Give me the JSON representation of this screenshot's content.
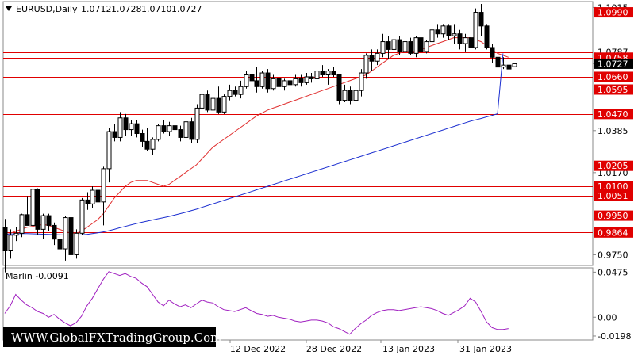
{
  "chart_data": {
    "type": "candlestick",
    "header": {
      "symbol": "EURUSD,Daily",
      "open": "1.0712",
      "high": "1.0728",
      "low": "1.0710",
      "close": "1.0727"
    },
    "price_axis": {
      "ylim": [
        0.9695,
        1.1045
      ],
      "ticks": [
        "1.1015",
        "1.0787",
        "1.0727",
        "1.0385",
        "1.0170",
        "0.9750"
      ]
    },
    "time_axis": {
      "labels": [
        "12 Dec 2022",
        "28 Dec 2022",
        "13 Jan 2023",
        "31 Jan 2023"
      ]
    },
    "levels": [
      {
        "value": 1.099,
        "label": "1.0990"
      },
      {
        "value": 1.0787,
        "label": ""
      },
      {
        "value": 1.0758,
        "label": "1.0758"
      },
      {
        "value": 1.066,
        "label": "1.0660"
      },
      {
        "value": 1.0595,
        "label": "1.0595"
      },
      {
        "value": 1.047,
        "label": "1.0470"
      },
      {
        "value": 1.0205,
        "label": "1.0205"
      },
      {
        "value": 1.01,
        "label": "1.0100"
      },
      {
        "value": 1.0051,
        "label": "1.0051"
      },
      {
        "value": 0.995,
        "label": "0.9950"
      },
      {
        "value": 0.9864,
        "label": "0.9864"
      }
    ],
    "candles": [
      [
        0.989,
        0.9933,
        0.966,
        0.977
      ],
      [
        0.977,
        0.988,
        0.973,
        0.985
      ],
      [
        0.985,
        0.989,
        0.982,
        0.986
      ],
      [
        0.986,
        0.996,
        0.984,
        0.9955
      ],
      [
        0.9955,
        1.005,
        0.99,
        0.99
      ],
      [
        0.99,
        1.009,
        0.988,
        1.0085
      ],
      [
        1.0085,
        1.009,
        0.985,
        0.988
      ],
      [
        0.988,
        0.996,
        0.983,
        0.995
      ],
      [
        0.995,
        0.996,
        0.987,
        0.99
      ],
      [
        0.99,
        0.9915,
        0.98,
        0.983
      ],
      [
        0.983,
        0.987,
        0.975,
        0.978
      ],
      [
        0.978,
        0.995,
        0.972,
        0.994
      ],
      [
        0.994,
        0.995,
        0.973,
        0.975
      ],
      [
        0.975,
        0.988,
        0.973,
        0.986
      ],
      [
        0.986,
        1.004,
        0.985,
        1.003
      ],
      [
        1.003,
        1.007,
        0.998,
        1.001
      ],
      [
        1.001,
        1.01,
        0.999,
        1.008
      ],
      [
        1.008,
        1.01,
        1.0,
        1.002
      ],
      [
        1.002,
        1.02,
        0.99,
        1.019
      ],
      [
        1.019,
        1.04,
        1.012,
        1.038
      ],
      [
        1.038,
        1.042,
        1.033,
        1.035
      ],
      [
        1.035,
        1.048,
        1.033,
        1.045
      ],
      [
        1.045,
        1.047,
        1.036,
        1.039
      ],
      [
        1.039,
        1.044,
        1.036,
        1.042
      ],
      [
        1.042,
        1.044,
        1.035,
        1.037
      ],
      [
        1.037,
        1.039,
        1.03,
        1.033
      ],
      [
        1.033,
        1.04,
        1.028,
        1.029
      ],
      [
        1.029,
        1.035,
        1.026,
        1.034
      ],
      [
        1.034,
        1.042,
        1.033,
        1.041
      ],
      [
        1.041,
        1.044,
        1.037,
        1.038
      ],
      [
        1.038,
        1.043,
        1.036,
        1.041
      ],
      [
        1.041,
        1.051,
        1.035,
        1.039
      ],
      [
        1.039,
        1.041,
        1.033,
        1.035
      ],
      [
        1.035,
        1.044,
        1.033,
        1.043
      ],
      [
        1.043,
        1.045,
        1.032,
        1.034
      ],
      [
        1.034,
        1.052,
        1.032,
        1.05
      ],
      [
        1.05,
        1.058,
        1.049,
        1.057
      ],
      [
        1.057,
        1.059,
        1.048,
        1.049
      ],
      [
        1.049,
        1.058,
        1.047,
        1.055
      ],
      [
        1.055,
        1.061,
        1.047,
        1.048
      ],
      [
        1.048,
        1.057,
        1.047,
        1.056
      ],
      [
        1.056,
        1.062,
        1.054,
        1.059
      ],
      [
        1.059,
        1.061,
        1.056,
        1.057
      ],
      [
        1.057,
        1.064,
        1.055,
        1.061
      ],
      [
        1.061,
        1.069,
        1.06,
        1.067
      ],
      [
        1.067,
        1.071,
        1.062,
        1.064
      ],
      [
        1.064,
        1.071,
        1.058,
        1.061
      ],
      [
        1.061,
        1.069,
        1.06,
        1.068
      ],
      [
        1.068,
        1.07,
        1.058,
        1.06
      ],
      [
        1.06,
        1.067,
        1.059,
        1.065
      ],
      [
        1.065,
        1.066,
        1.058,
        1.061
      ],
      [
        1.061,
        1.065,
        1.059,
        1.064
      ],
      [
        1.064,
        1.065,
        1.06,
        1.062
      ],
      [
        1.062,
        1.067,
        1.061,
        1.065
      ],
      [
        1.065,
        1.067,
        1.061,
        1.063
      ],
      [
        1.063,
        1.068,
        1.062,
        1.066
      ],
      [
        1.066,
        1.068,
        1.063,
        1.065
      ],
      [
        1.065,
        1.07,
        1.064,
        1.069
      ],
      [
        1.069,
        1.072,
        1.066,
        1.067
      ],
      [
        1.067,
        1.07,
        1.062,
        1.069
      ],
      [
        1.069,
        1.071,
        1.066,
        1.067
      ],
      [
        1.067,
        1.067,
        1.052,
        1.054
      ],
      [
        1.054,
        1.062,
        1.053,
        1.059
      ],
      [
        1.059,
        1.061,
        1.052,
        1.054
      ],
      [
        1.054,
        1.06,
        1.048,
        1.059
      ],
      [
        1.059,
        1.07,
        1.056,
        1.068
      ],
      [
        1.068,
        1.078,
        1.065,
        1.077
      ],
      [
        1.077,
        1.08,
        1.069,
        1.074
      ],
      [
        1.074,
        1.08,
        1.072,
        1.078
      ],
      [
        1.078,
        1.088,
        1.076,
        1.084
      ],
      [
        1.084,
        1.087,
        1.075,
        1.08
      ],
      [
        1.08,
        1.087,
        1.078,
        1.085
      ],
      [
        1.085,
        1.087,
        1.077,
        1.079
      ],
      [
        1.079,
        1.085,
        1.077,
        1.084
      ],
      [
        1.084,
        1.086,
        1.077,
        1.078
      ],
      [
        1.078,
        1.087,
        1.076,
        1.086
      ],
      [
        1.086,
        1.088,
        1.076,
        1.079
      ],
      [
        1.079,
        1.085,
        1.078,
        1.084
      ],
      [
        1.084,
        1.092,
        1.082,
        1.09
      ],
      [
        1.09,
        1.093,
        1.086,
        1.088
      ],
      [
        1.088,
        1.093,
        1.086,
        1.092
      ],
      [
        1.092,
        1.093,
        1.085,
        1.087
      ],
      [
        1.087,
        1.093,
        1.083,
        1.088
      ],
      [
        1.088,
        1.09,
        1.08,
        1.083
      ],
      [
        1.083,
        1.088,
        1.079,
        1.086
      ],
      [
        1.086,
        1.088,
        1.08,
        1.081
      ],
      [
        1.081,
        1.101,
        1.08,
        1.099
      ],
      [
        1.099,
        1.1033,
        1.087,
        1.092
      ],
      [
        1.092,
        1.093,
        1.08,
        1.081
      ],
      [
        1.081,
        1.083,
        1.073,
        1.076
      ],
      [
        1.076,
        1.076,
        1.068,
        1.071
      ],
      [
        1.071,
        1.076,
        1.07,
        1.072
      ],
      [
        1.072,
        1.073,
        1.069,
        1.07
      ],
      [
        1.0712,
        1.0728,
        1.071,
        1.0727
      ]
    ],
    "series": [
      {
        "role": "red-ma",
        "color": "#e03030",
        "values": [
          0.985,
          0.986,
          0.987,
          0.988,
          0.989,
          0.9895,
          0.99,
          0.9905,
          0.99,
          0.989,
          0.988,
          0.987,
          0.986,
          0.986,
          0.987,
          0.989,
          0.991,
          0.993,
          0.996,
          1.0,
          1.004,
          1.007,
          1.01,
          1.012,
          1.013,
          1.013,
          1.013,
          1.012,
          1.011,
          1.01,
          1.011,
          1.013,
          1.015,
          1.017,
          1.019,
          1.021,
          1.024,
          1.027,
          1.03,
          1.032,
          1.034,
          1.036,
          1.038,
          1.04,
          1.042,
          1.044,
          1.046,
          1.0475,
          1.049,
          1.05,
          1.051,
          1.052,
          1.053,
          1.054,
          1.055,
          1.056,
          1.057,
          1.058,
          1.059,
          1.06,
          1.061,
          1.062,
          1.063,
          1.064,
          1.065,
          1.066,
          1.067,
          1.069,
          1.071,
          1.073,
          1.075,
          1.077,
          1.078,
          1.079,
          1.079,
          1.079,
          1.08,
          1.081,
          1.082,
          1.083,
          1.084,
          1.085,
          1.086,
          1.086,
          1.086,
          1.086,
          1.085,
          1.084,
          1.082,
          1.08,
          1.078,
          1.077,
          1.076
        ]
      },
      {
        "role": "blue-ma",
        "color": "#1c2fd0",
        "values": [
          0.9855,
          0.9856,
          0.9857,
          0.9858,
          0.9858,
          0.9857,
          0.9856,
          0.9855,
          0.9854,
          0.9853,
          0.9852,
          0.9851,
          0.9851,
          0.9851,
          0.9852,
          0.9854,
          0.9858,
          0.9862,
          0.9867,
          0.9873,
          0.988,
          0.9888,
          0.9895,
          0.9902,
          0.9909,
          0.9916,
          0.9922,
          0.9928,
          0.9934,
          0.994,
          0.9946,
          0.9953,
          0.996,
          0.9967,
          0.9975,
          0.9983,
          0.9992,
          1.0001,
          1.001,
          1.0019,
          1.0028,
          1.0037,
          1.0046,
          1.0055,
          1.0064,
          1.0073,
          1.0082,
          1.0091,
          1.01,
          1.0109,
          1.0118,
          1.0127,
          1.0136,
          1.0145,
          1.0154,
          1.0163,
          1.0172,
          1.0181,
          1.019,
          1.0199,
          1.0208,
          1.0217,
          1.0226,
          1.0235,
          1.0244,
          1.0253,
          1.0262,
          1.0271,
          1.028,
          1.0289,
          1.0298,
          1.0307,
          1.0316,
          1.0325,
          1.0334,
          1.0343,
          1.0352,
          1.0361,
          1.037,
          1.0379,
          1.0388,
          1.0397,
          1.0406,
          1.0415,
          1.0424,
          1.0433,
          1.044,
          1.0447,
          1.0455,
          1.0463,
          1.0471,
          1.078
        ]
      }
    ],
    "oscillator": {
      "name": "Marlin -0.0091",
      "ylim": [
        -0.024,
        0.052
      ],
      "ticks": [
        "0.0475",
        "0.00",
        "-0.0198"
      ],
      "color": "#a020c0",
      "values": [
        0.004,
        0.012,
        0.024,
        0.018,
        0.013,
        0.01,
        0.006,
        0.004,
        0.0,
        0.003,
        -0.002,
        -0.006,
        -0.009,
        -0.006,
        0.001,
        0.012,
        0.02,
        0.03,
        0.04,
        0.048,
        0.046,
        0.044,
        0.046,
        0.043,
        0.041,
        0.036,
        0.032,
        0.024,
        0.016,
        0.012,
        0.018,
        0.014,
        0.011,
        0.013,
        0.01,
        0.014,
        0.018,
        0.016,
        0.015,
        0.011,
        0.008,
        0.007,
        0.006,
        0.008,
        0.01,
        0.007,
        0.004,
        0.003,
        0.001,
        0.002,
        0.0,
        -0.001,
        -0.002,
        -0.004,
        -0.005,
        -0.004,
        -0.003,
        -0.003,
        -0.004,
        -0.006,
        -0.01,
        -0.012,
        -0.015,
        -0.018,
        -0.012,
        -0.007,
        -0.003,
        0.002,
        0.005,
        0.007,
        0.008,
        0.008,
        0.007,
        0.008,
        0.009,
        0.01,
        0.011,
        0.01,
        0.009,
        0.007,
        0.004,
        0.002,
        0.005,
        0.008,
        0.012,
        0.02,
        0.016,
        0.006,
        -0.005,
        -0.011,
        -0.013,
        -0.013,
        -0.012
      ]
    },
    "watermark": "WWW.GlobalFXTradingGroup.Com"
  }
}
